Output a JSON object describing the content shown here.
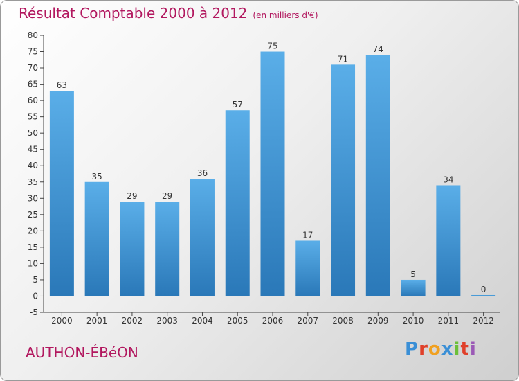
{
  "title": {
    "main": "Résultat Comptable 2000 à 2012",
    "unit": "(en milliers d'€)"
  },
  "commune": "AUTHON-ÉBéON",
  "logo": {
    "text": "Proxiti",
    "letter_colors": [
      "#3a8fd6",
      "#e0402a",
      "#f0a020",
      "#3a8fd6",
      "#6cbf3a",
      "#e0402a",
      "#9b59b6"
    ]
  },
  "colors": {
    "title": "#b2185f",
    "bar_top": "#5aaee8",
    "bar_bottom": "#2a78b8"
  },
  "chart_data": {
    "type": "bar",
    "categories": [
      "2000",
      "2001",
      "2002",
      "2003",
      "2004",
      "2005",
      "2006",
      "2007",
      "2008",
      "2009",
      "2010",
      "2011",
      "2012"
    ],
    "values": [
      63,
      35,
      29,
      29,
      36,
      57,
      75,
      17,
      71,
      74,
      5,
      34,
      0
    ],
    "title": "Résultat Comptable 2000 à 2012",
    "xlabel": "",
    "ylabel": "",
    "ylim": [
      -5,
      80
    ],
    "yticks": [
      -5,
      0,
      5,
      10,
      15,
      20,
      25,
      30,
      35,
      40,
      45,
      50,
      55,
      60,
      65,
      70,
      75,
      80
    ],
    "grid": false,
    "data_labels": true
  }
}
